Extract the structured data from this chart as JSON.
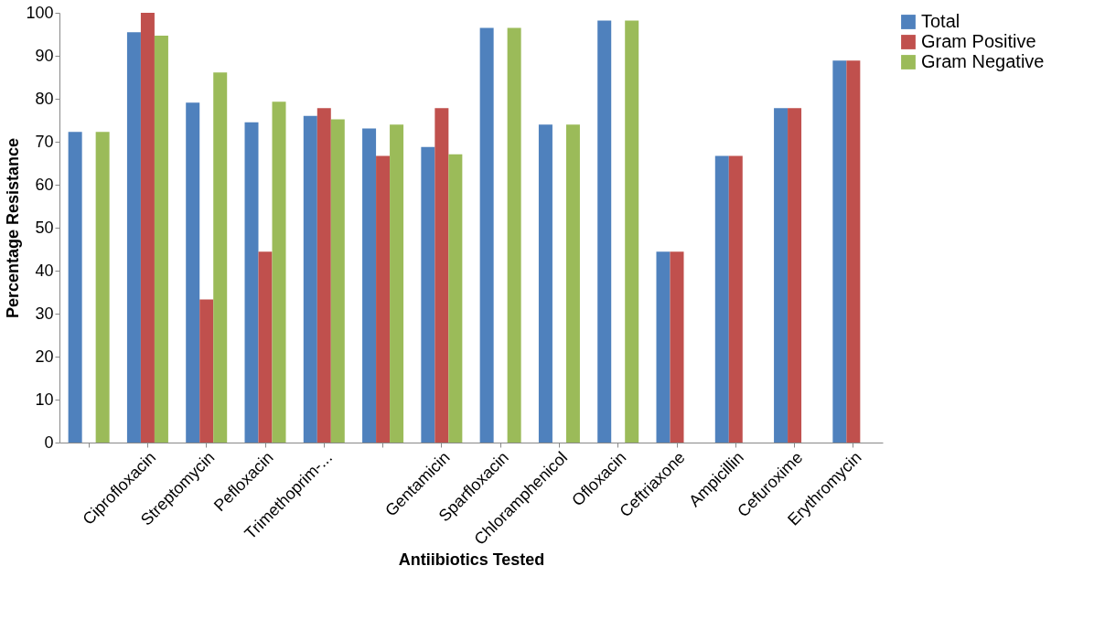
{
  "chart_data": {
    "type": "bar",
    "xlabel": "Antiibiotics Tested",
    "ylabel": "Percentage Resistance",
    "categories": [
      null,
      "Ciprofloxacin",
      "Streptomycin",
      "Pefloxacin",
      "Trimethoprim-...",
      null,
      "Gentamicin",
      "Sparfloxacin",
      "Chloramphenicol",
      "Ofloxacin",
      "Ceftriaxone",
      "Ampicillin",
      "Cefuroxime",
      "Erythromycin"
    ],
    "series": [
      {
        "name": "Total",
        "color": "#4f81bd",
        "values": [
          72.3,
          95.5,
          79.1,
          74.5,
          76.0,
          73.1,
          68.8,
          96.5,
          74.0,
          98.2,
          44.4,
          66.7,
          77.8,
          88.9
        ]
      },
      {
        "name": "Gram Positive",
        "color": "#c0504d",
        "values": [
          null,
          100,
          33.3,
          44.4,
          77.8,
          66.7,
          77.8,
          null,
          null,
          null,
          44.4,
          66.7,
          77.8,
          88.9
        ]
      },
      {
        "name": "Gram Negative",
        "color": "#9bbb59",
        "values": [
          72.3,
          94.7,
          86.1,
          79.3,
          75.2,
          74.0,
          67.1,
          96.5,
          74.0,
          98.2,
          null,
          null,
          null,
          null
        ]
      }
    ],
    "ylim": [
      0,
      100
    ],
    "yticks": [
      0,
      10,
      20,
      30,
      40,
      50,
      60,
      70,
      80,
      90,
      100
    ],
    "grid": false,
    "legend": "top right"
  }
}
